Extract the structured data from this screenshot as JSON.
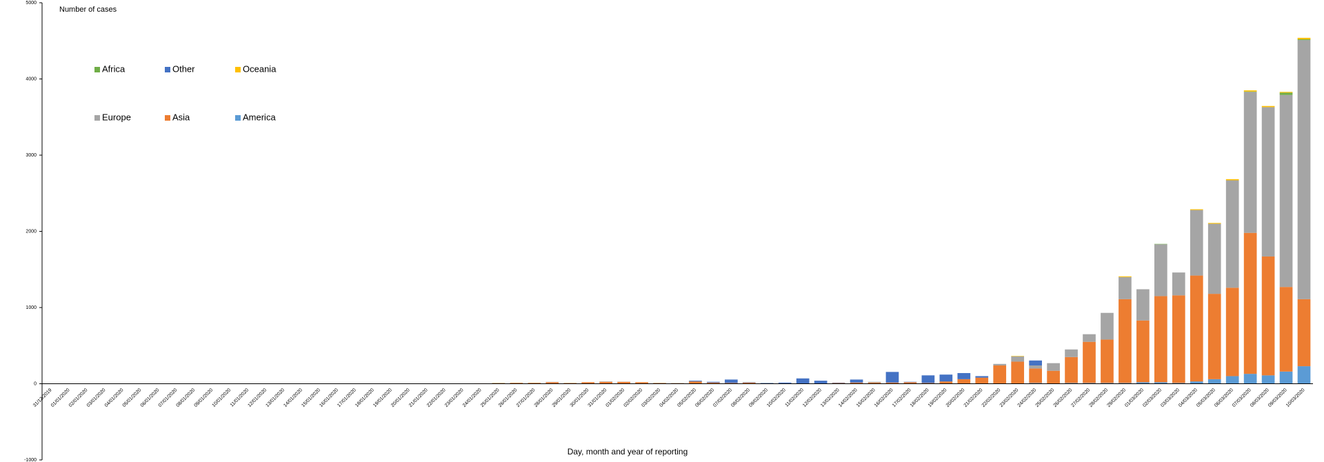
{
  "chart_data": {
    "type": "stacked_bar",
    "title": "Number of cases",
    "x_label": "Day, month and year of reporting",
    "categories": [
      "31/12/2019",
      "01/01/2020",
      "02/01/2020",
      "03/01/2020",
      "04/01/2020",
      "05/01/2020",
      "06/01/2020",
      "07/01/2020",
      "08/01/2020",
      "09/01/2020",
      "10/01/2020",
      "11/01/2020",
      "12/01/2020",
      "13/01/2020",
      "14/01/2020",
      "15/01/2020",
      "16/01/2020",
      "17/01/2020",
      "18/01/2020",
      "19/01/2020",
      "20/01/2020",
      "21/01/2020",
      "22/01/2020",
      "23/01/2020",
      "24/01/2020",
      "25/01/2020",
      "26/01/2020",
      "27/01/2020",
      "28/01/2020",
      "29/01/2020",
      "30/01/2020",
      "31/01/2020",
      "01/02/2020",
      "02/02/2020",
      "03/02/2020",
      "04/02/2020",
      "05/02/2020",
      "06/02/2020",
      "07/02/2020",
      "08/02/2020",
      "09/02/2020",
      "10/02/2020",
      "11/02/2020",
      "12/02/2020",
      "13/02/2020",
      "14/02/2020",
      "15/02/2020",
      "16/02/2020",
      "17/02/2020",
      "18/02/2020",
      "19/02/2020",
      "20/02/2020",
      "21/02/2020",
      "22/02/2020",
      "23/02/2020",
      "24/02/2020",
      "25/02/2020",
      "26/02/2020",
      "27/02/2020",
      "28/02/2020",
      "29/02/2020",
      "01/03/2020",
      "02/03/2020",
      "03/03/2020",
      "04/03/2020",
      "05/03/2020",
      "06/03/2020",
      "07/03/2020",
      "08/03/2020",
      "09/03/2020",
      "10/03/2020"
    ],
    "series": [
      {
        "name": "America",
        "color": "#5b9bd5",
        "values": [
          0,
          0,
          0,
          0,
          0,
          0,
          0,
          0,
          0,
          0,
          0,
          0,
          0,
          0,
          0,
          0,
          0,
          0,
          0,
          0,
          0,
          0,
          0,
          0,
          0,
          0,
          2,
          0,
          0,
          0,
          0,
          0,
          0,
          0,
          0,
          0,
          0,
          0,
          0,
          0,
          0,
          0,
          0,
          0,
          0,
          0,
          0,
          0,
          0,
          0,
          0,
          0,
          0,
          0,
          0,
          10,
          0,
          10,
          10,
          10,
          10,
          20,
          20,
          10,
          30,
          60,
          100,
          130,
          110,
          160,
          230
        ]
      },
      {
        "name": "Asia",
        "color": "#ed7d31",
        "values": [
          0,
          0,
          0,
          0,
          0,
          0,
          0,
          0,
          0,
          0,
          0,
          0,
          0,
          0,
          0,
          0,
          0,
          0,
          0,
          0,
          0,
          0,
          0,
          0,
          5,
          8,
          10,
          12,
          20,
          10,
          20,
          25,
          25,
          20,
          10,
          8,
          30,
          15,
          10,
          15,
          5,
          5,
          0,
          0,
          10,
          15,
          15,
          15,
          20,
          10,
          30,
          60,
          80,
          240,
          290,
          190,
          170,
          340,
          540,
          570,
          1100,
          810,
          1130,
          1150,
          1390,
          1120,
          1160,
          1850,
          1560,
          1110,
          880
        ]
      },
      {
        "name": "Europe",
        "color": "#a5a5a5",
        "values": [
          0,
          0,
          0,
          0,
          0,
          0,
          0,
          0,
          0,
          0,
          0,
          0,
          0,
          0,
          0,
          0,
          0,
          0,
          0,
          0,
          0,
          0,
          0,
          0,
          0,
          3,
          0,
          0,
          4,
          0,
          1,
          5,
          2,
          0,
          1,
          1,
          0,
          0,
          0,
          0,
          0,
          0,
          0,
          0,
          0,
          0,
          10,
          0,
          0,
          0,
          0,
          0,
          0,
          20,
          70,
          40,
          100,
          100,
          100,
          350,
          290,
          410,
          680,
          300,
          860,
          920,
          1410,
          1850,
          1960,
          2520,
          3400
        ]
      },
      {
        "name": "Other",
        "color": "#4472c4",
        "values": [
          0,
          0,
          0,
          0,
          0,
          0,
          0,
          0,
          0,
          0,
          0,
          0,
          0,
          0,
          0,
          0,
          0,
          0,
          0,
          0,
          0,
          0,
          0,
          0,
          0,
          0,
          0,
          0,
          0,
          0,
          0,
          0,
          0,
          0,
          0,
          0,
          10,
          10,
          45,
          5,
          5,
          10,
          70,
          40,
          5,
          40,
          0,
          140,
          5,
          100,
          90,
          80,
          20,
          0,
          0,
          65,
          0,
          0,
          0,
          0,
          0,
          0,
          0,
          0,
          0,
          0,
          0,
          0,
          0,
          0,
          0
        ]
      },
      {
        "name": "Africa",
        "color": "#70ad47",
        "values": [
          0,
          0,
          0,
          0,
          0,
          0,
          0,
          0,
          0,
          0,
          0,
          0,
          0,
          0,
          0,
          0,
          0,
          0,
          0,
          0,
          0,
          0,
          0,
          0,
          0,
          0,
          0,
          0,
          0,
          0,
          0,
          0,
          0,
          0,
          0,
          0,
          0,
          0,
          0,
          0,
          0,
          0,
          0,
          0,
          0,
          0,
          0,
          0,
          0,
          0,
          0,
          0,
          0,
          0,
          0,
          0,
          0,
          0,
          0,
          0,
          0,
          0,
          5,
          0,
          0,
          0,
          0,
          5,
          0,
          30,
          10
        ]
      },
      {
        "name": "Oceania",
        "color": "#ffc000",
        "values": [
          0,
          0,
          0,
          0,
          0,
          0,
          0,
          0,
          0,
          0,
          0,
          0,
          0,
          0,
          0,
          0,
          0,
          0,
          0,
          0,
          0,
          0,
          0,
          0,
          0,
          1,
          0,
          0,
          0,
          0,
          0,
          0,
          0,
          0,
          0,
          0,
          0,
          0,
          0,
          0,
          0,
          0,
          0,
          0,
          0,
          0,
          0,
          0,
          0,
          0,
          0,
          0,
          0,
          0,
          5,
          0,
          0,
          0,
          0,
          0,
          10,
          0,
          0,
          0,
          10,
          10,
          15,
          15,
          15,
          10,
          20
        ]
      }
    ],
    "ylim": [
      -1000,
      5000
    ],
    "yticks": [
      -1000,
      0,
      1000,
      2000,
      3000,
      4000,
      5000
    ],
    "grid": false
  }
}
